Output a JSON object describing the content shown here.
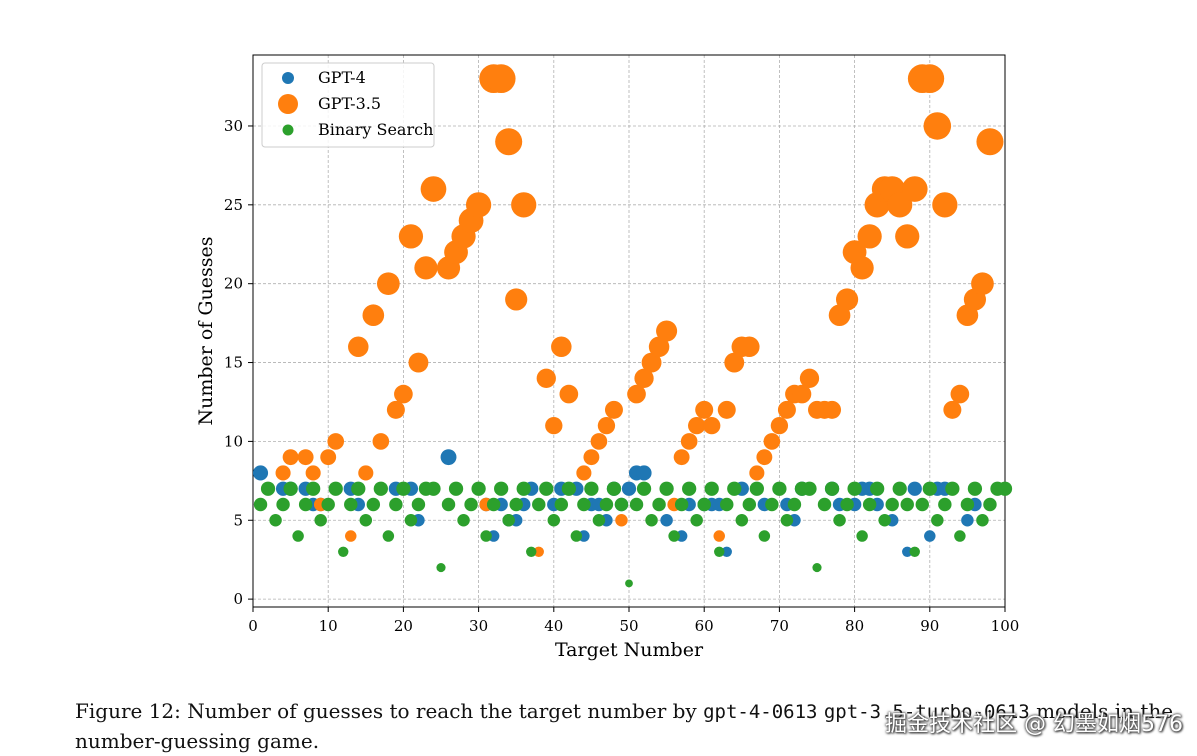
{
  "chart_data": {
    "type": "scatter",
    "xlabel": "Target Number",
    "ylabel": "Number of Guesses",
    "xlim": [
      0,
      100
    ],
    "ylim": [
      -0.5,
      34.5
    ],
    "xticks": [
      0,
      10,
      20,
      30,
      40,
      50,
      60,
      70,
      80,
      90,
      100
    ],
    "yticks": [
      0,
      5,
      10,
      15,
      20,
      25,
      30
    ],
    "grid": true,
    "legend_position": "top-left",
    "marker_size_encodes": "number of guesses",
    "series": [
      {
        "name": "GPT-4",
        "color": "#1f77b4",
        "points": [
          [
            1,
            8
          ],
          [
            4,
            7
          ],
          [
            5,
            7
          ],
          [
            7,
            7
          ],
          [
            8,
            6
          ],
          [
            9,
            6
          ],
          [
            13,
            7
          ],
          [
            14,
            6
          ],
          [
            19,
            7
          ],
          [
            21,
            7
          ],
          [
            22,
            5
          ],
          [
            26,
            9
          ],
          [
            31,
            6
          ],
          [
            32,
            4
          ],
          [
            33,
            6
          ],
          [
            34,
            5
          ],
          [
            35,
            5
          ],
          [
            36,
            6
          ],
          [
            37,
            7
          ],
          [
            40,
            6
          ],
          [
            41,
            7
          ],
          [
            43,
            7
          ],
          [
            44,
            4
          ],
          [
            45,
            6
          ],
          [
            46,
            6
          ],
          [
            47,
            5
          ],
          [
            48,
            7
          ],
          [
            49,
            6
          ],
          [
            50,
            7
          ],
          [
            51,
            8
          ],
          [
            52,
            8
          ],
          [
            55,
            5
          ],
          [
            57,
            4
          ],
          [
            58,
            6
          ],
          [
            60,
            6
          ],
          [
            61,
            6
          ],
          [
            62,
            6
          ],
          [
            63,
            3
          ],
          [
            65,
            7
          ],
          [
            68,
            6
          ],
          [
            71,
            6
          ],
          [
            72,
            5
          ],
          [
            73,
            7
          ],
          [
            77,
            7
          ],
          [
            78,
            6
          ],
          [
            80,
            6
          ],
          [
            81,
            7
          ],
          [
            82,
            7
          ],
          [
            83,
            6
          ],
          [
            85,
            5
          ],
          [
            87,
            3
          ],
          [
            88,
            7
          ],
          [
            90,
            4
          ],
          [
            91,
            7
          ],
          [
            92,
            7
          ],
          [
            95,
            5
          ],
          [
            96,
            6
          ]
        ]
      },
      {
        "name": "GPT-3.5",
        "color": "#ff7f0e",
        "points": [
          [
            4,
            8
          ],
          [
            5,
            9
          ],
          [
            7,
            9
          ],
          [
            8,
            8
          ],
          [
            9,
            6
          ],
          [
            10,
            9
          ],
          [
            11,
            10
          ],
          [
            13,
            4
          ],
          [
            14,
            16
          ],
          [
            15,
            8
          ],
          [
            16,
            18
          ],
          [
            17,
            10
          ],
          [
            18,
            20
          ],
          [
            19,
            12
          ],
          [
            20,
            13
          ],
          [
            21,
            23
          ],
          [
            22,
            15
          ],
          [
            23,
            21
          ],
          [
            24,
            26
          ],
          [
            26,
            21
          ],
          [
            27,
            22
          ],
          [
            28,
            23
          ],
          [
            29,
            24
          ],
          [
            30,
            25
          ],
          [
            31,
            6
          ],
          [
            32,
            33
          ],
          [
            33,
            33
          ],
          [
            34,
            29
          ],
          [
            35,
            19
          ],
          [
            36,
            25
          ],
          [
            38,
            3
          ],
          [
            39,
            14
          ],
          [
            40,
            11
          ],
          [
            41,
            16
          ],
          [
            42,
            13
          ],
          [
            44,
            8
          ],
          [
            45,
            9
          ],
          [
            46,
            10
          ],
          [
            47,
            11
          ],
          [
            48,
            12
          ],
          [
            49,
            5
          ],
          [
            51,
            13
          ],
          [
            52,
            14
          ],
          [
            53,
            15
          ],
          [
            54,
            16
          ],
          [
            55,
            17
          ],
          [
            56,
            6
          ],
          [
            57,
            9
          ],
          [
            58,
            10
          ],
          [
            59,
            11
          ],
          [
            60,
            12
          ],
          [
            61,
            11
          ],
          [
            62,
            4
          ],
          [
            63,
            12
          ],
          [
            64,
            15
          ],
          [
            65,
            16
          ],
          [
            66,
            16
          ],
          [
            67,
            8
          ],
          [
            68,
            9
          ],
          [
            69,
            10
          ],
          [
            70,
            11
          ],
          [
            71,
            12
          ],
          [
            72,
            13
          ],
          [
            73,
            13
          ],
          [
            74,
            14
          ],
          [
            75,
            12
          ],
          [
            76,
            12
          ],
          [
            77,
            12
          ],
          [
            78,
            18
          ],
          [
            79,
            19
          ],
          [
            80,
            22
          ],
          [
            81,
            21
          ],
          [
            82,
            23
          ],
          [
            83,
            25
          ],
          [
            84,
            26
          ],
          [
            85,
            26
          ],
          [
            86,
            25
          ],
          [
            87,
            23
          ],
          [
            88,
            26
          ],
          [
            89,
            33
          ],
          [
            90,
            33
          ],
          [
            91,
            30
          ],
          [
            92,
            25
          ],
          [
            93,
            12
          ],
          [
            94,
            13
          ],
          [
            95,
            18
          ],
          [
            96,
            19
          ],
          [
            97,
            20
          ],
          [
            98,
            29
          ]
        ]
      },
      {
        "name": "Binary Search",
        "color": "#2ca02c",
        "points": [
          [
            1,
            6
          ],
          [
            2,
            7
          ],
          [
            3,
            5
          ],
          [
            4,
            6
          ],
          [
            5,
            7
          ],
          [
            6,
            4
          ],
          [
            7,
            6
          ],
          [
            8,
            7
          ],
          [
            9,
            5
          ],
          [
            10,
            6
          ],
          [
            11,
            7
          ],
          [
            12,
            3
          ],
          [
            13,
            6
          ],
          [
            14,
            7
          ],
          [
            15,
            5
          ],
          [
            16,
            6
          ],
          [
            17,
            7
          ],
          [
            18,
            4
          ],
          [
            19,
            6
          ],
          [
            20,
            7
          ],
          [
            21,
            5
          ],
          [
            22,
            6
          ],
          [
            23,
            7
          ],
          [
            24,
            7
          ],
          [
            25,
            2
          ],
          [
            26,
            6
          ],
          [
            27,
            7
          ],
          [
            28,
            5
          ],
          [
            29,
            6
          ],
          [
            30,
            7
          ],
          [
            31,
            4
          ],
          [
            32,
            6
          ],
          [
            33,
            7
          ],
          [
            34,
            5
          ],
          [
            35,
            6
          ],
          [
            36,
            7
          ],
          [
            37,
            3
          ],
          [
            38,
            6
          ],
          [
            39,
            7
          ],
          [
            40,
            5
          ],
          [
            41,
            6
          ],
          [
            42,
            7
          ],
          [
            43,
            4
          ],
          [
            44,
            6
          ],
          [
            45,
            7
          ],
          [
            46,
            5
          ],
          [
            47,
            6
          ],
          [
            48,
            7
          ],
          [
            49,
            6
          ],
          [
            50,
            1
          ],
          [
            51,
            6
          ],
          [
            52,
            7
          ],
          [
            53,
            5
          ],
          [
            54,
            6
          ],
          [
            55,
            7
          ],
          [
            56,
            4
          ],
          [
            57,
            6
          ],
          [
            58,
            7
          ],
          [
            59,
            5
          ],
          [
            60,
            6
          ],
          [
            61,
            7
          ],
          [
            62,
            3
          ],
          [
            63,
            6
          ],
          [
            64,
            7
          ],
          [
            65,
            5
          ],
          [
            66,
            6
          ],
          [
            67,
            7
          ],
          [
            68,
            4
          ],
          [
            69,
            6
          ],
          [
            70,
            7
          ],
          [
            71,
            5
          ],
          [
            72,
            6
          ],
          [
            73,
            7
          ],
          [
            74,
            7
          ],
          [
            75,
            2
          ],
          [
            76,
            6
          ],
          [
            77,
            7
          ],
          [
            78,
            5
          ],
          [
            79,
            6
          ],
          [
            80,
            7
          ],
          [
            81,
            4
          ],
          [
            82,
            6
          ],
          [
            83,
            7
          ],
          [
            84,
            5
          ],
          [
            85,
            6
          ],
          [
            86,
            7
          ],
          [
            87,
            6
          ],
          [
            88,
            3
          ],
          [
            89,
            6
          ],
          [
            90,
            7
          ],
          [
            91,
            5
          ],
          [
            92,
            6
          ],
          [
            93,
            7
          ],
          [
            94,
            4
          ],
          [
            95,
            6
          ],
          [
            96,
            7
          ],
          [
            97,
            5
          ],
          [
            98,
            6
          ],
          [
            99,
            7
          ],
          [
            100,
            7
          ]
        ]
      }
    ]
  },
  "caption": {
    "prefix": "Figure 12: Number of guesses to reach the target number by ",
    "model_a": "gpt-4-0613",
    "model_b": "gpt-3.5-turbo-0613",
    "suffix": " models in the number-guessing game."
  },
  "watermark": "掘金技术社区 @ 幻墨如烟576"
}
